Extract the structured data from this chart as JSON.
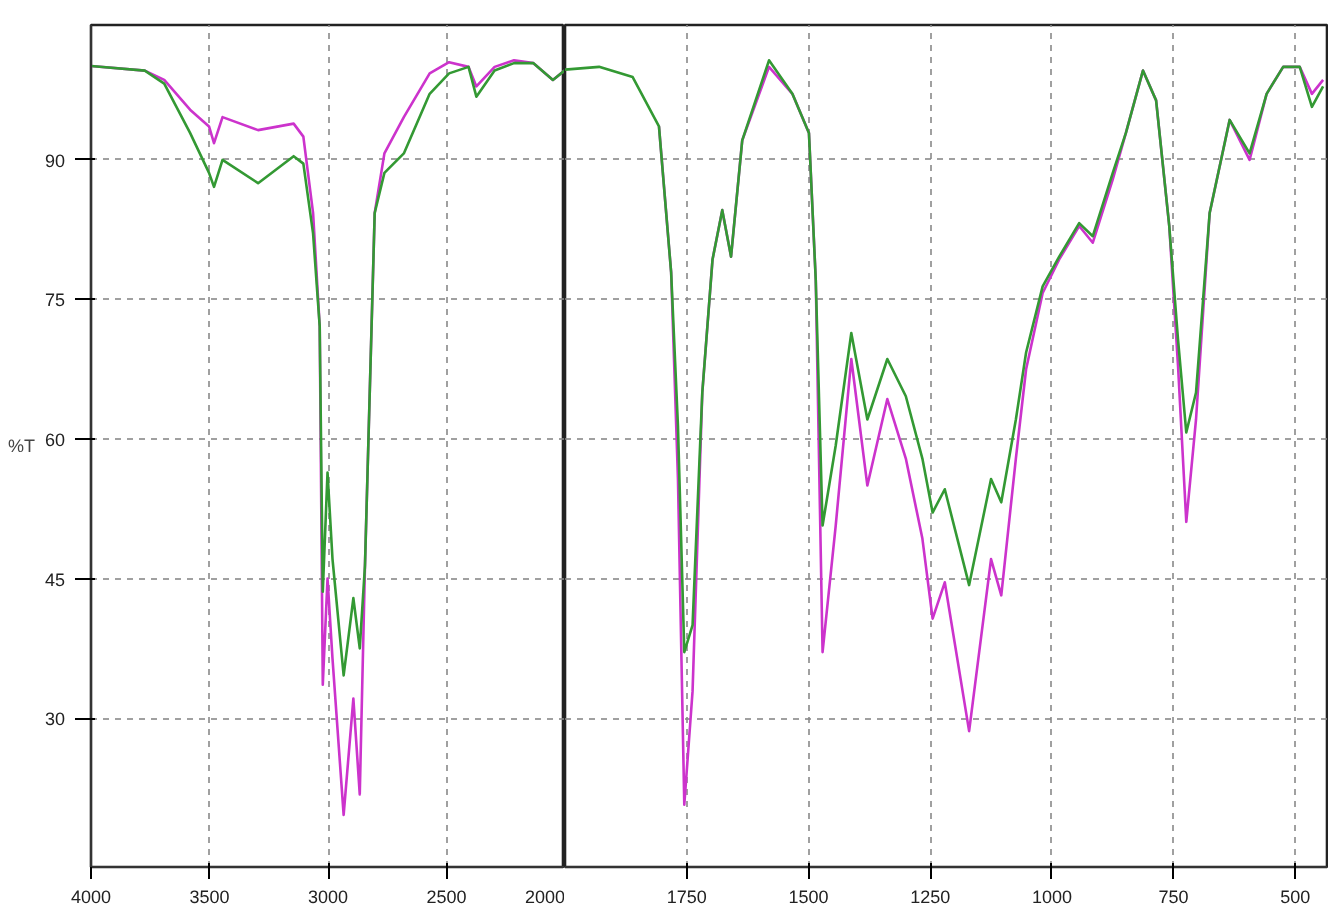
{
  "chart_data": [
    {
      "type": "line",
      "ylabel": "%T",
      "x": [
        4000,
        3773,
        3691,
        3582,
        3502,
        3481,
        3445,
        3295,
        3145,
        3104,
        3063,
        3035,
        3022,
        3002,
        2981,
        2934,
        2893,
        2866,
        2844,
        2830,
        2803,
        2762,
        2680,
        2571,
        2489,
        2407,
        2374,
        2297,
        2215,
        2133,
        2051,
        2002
      ],
      "series": [
        {
          "color": "#cc33cc",
          "values": [
            100.1,
            99.6,
            98.6,
            95.4,
            93.6,
            91.8,
            94.6,
            93.2,
            93.9,
            92.5,
            84.3,
            72.1,
            33.6,
            45,
            36.4,
            19.6,
            32.1,
            21.8,
            46.4,
            59.3,
            84.3,
            90.7,
            94.6,
            99.3,
            100.5,
            100,
            97.9,
            100,
            100.7,
            100.4,
            98.6,
            99.6
          ]
        },
        {
          "color": "#339933",
          "values": [
            100.1,
            99.6,
            98.2,
            92.9,
            88.6,
            87.1,
            90,
            87.5,
            90.4,
            89.6,
            82.1,
            72.1,
            43.6,
            56.4,
            47.1,
            34.6,
            42.9,
            37.5,
            46.4,
            59.3,
            84.3,
            88.6,
            90.7,
            97.1,
            99.3,
            100,
            96.8,
            99.6,
            100.4,
            100.4,
            98.6,
            99.6
          ]
        }
      ],
      "xlim": [
        4000,
        2000
      ],
      "ylim": [
        14,
        104.5
      ],
      "xticks": [
        4000,
        3500,
        3000,
        2500,
        2000
      ],
      "yticks": [
        30,
        45,
        60,
        75,
        90
      ],
      "grid": true
    },
    {
      "type": "line",
      "x": [
        2000,
        1930,
        1861,
        1807,
        1782,
        1768,
        1755,
        1738,
        1718,
        1697,
        1677,
        1659,
        1636,
        1581,
        1533,
        1499,
        1485,
        1471,
        1444,
        1412,
        1379,
        1338,
        1300,
        1266,
        1245,
        1220,
        1170,
        1125,
        1104,
        1074,
        1053,
        1019,
        985,
        944,
        916,
        875,
        848,
        813,
        786,
        759,
        741,
        724,
        704,
        676,
        635,
        594,
        559,
        525,
        491,
        466,
        443
      ],
      "series": [
        {
          "color": "#cc33cc",
          "values": [
            null,
            null,
            null,
            93.6,
            77.9,
            55.7,
            20.7,
            32.9,
            65,
            79.3,
            84.6,
            79.6,
            92.1,
            100,
            97.1,
            92.9,
            77.1,
            37.1,
            50.7,
            68.6,
            55,
            64.3,
            57.9,
            49.3,
            40.7,
            44.6,
            28.6,
            47.1,
            43.2,
            57.9,
            67.5,
            75.7,
            79.3,
            82.9,
            81.1,
            87.9,
            92.9,
            99.6,
            96.4,
            82.9,
            67.9,
            51.1,
            62.1,
            84.3,
            94.3,
            90,
            97.1,
            100,
            100,
            97.1,
            98.6
          ]
        },
        {
          "color": "#339933",
          "values": [
            99.7,
            100,
            98.9,
            93.6,
            77.9,
            61.4,
            37.1,
            40,
            65,
            79.3,
            84.6,
            79.6,
            92.1,
            100.7,
            97.1,
            92.9,
            77.1,
            50.7,
            59.3,
            71.4,
            62.1,
            68.6,
            64.6,
            57.9,
            52.1,
            54.6,
            44.3,
            55.7,
            53.2,
            62.1,
            69.3,
            76.4,
            79.6,
            83.2,
            81.8,
            88.6,
            92.9,
            99.6,
            96.4,
            82.9,
            70.7,
            60.7,
            65,
            84.3,
            94.3,
            90.7,
            97.1,
            100,
            100,
            95.7,
            97.9
          ]
        }
      ],
      "xlim": [
        2000,
        435
      ],
      "ylim": [
        14,
        104.5
      ],
      "xticks": [
        1750,
        1500,
        1250,
        1000,
        750,
        500
      ],
      "yticks": [
        30,
        45,
        60,
        75,
        90
      ],
      "tick_labels": "x",
      "grid": true
    }
  ]
}
